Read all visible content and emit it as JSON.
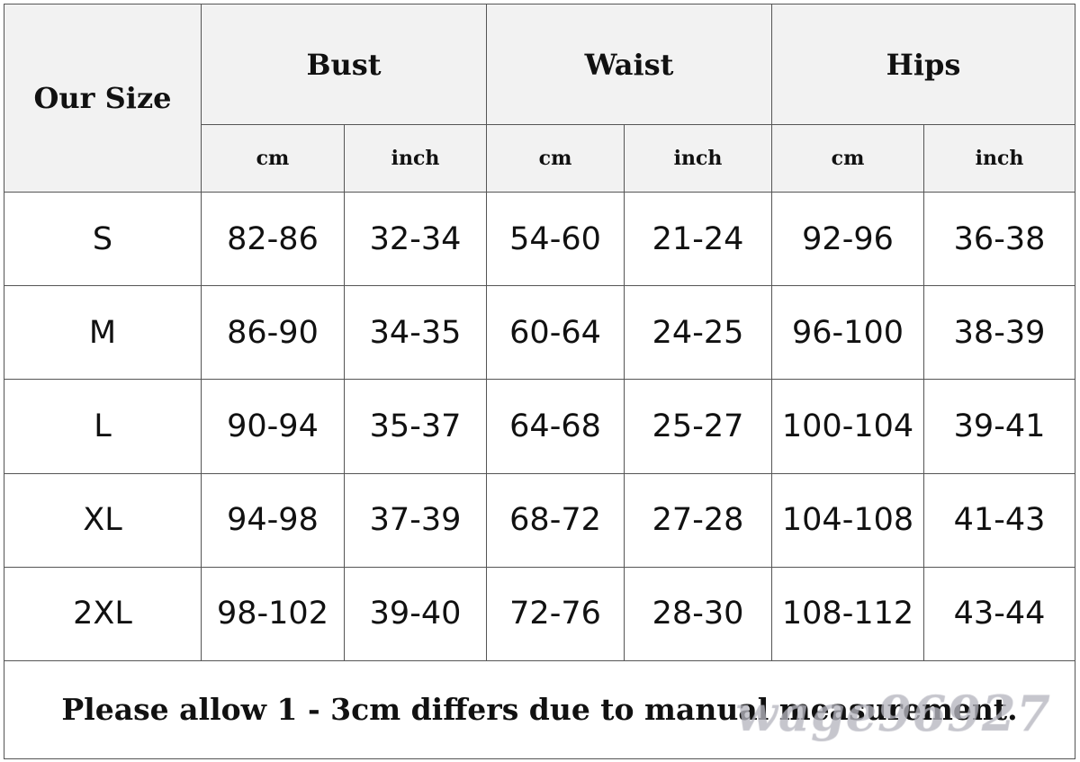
{
  "table": {
    "our_size": "Our Size",
    "groups": [
      "Bust",
      "Waist",
      "Hips"
    ],
    "units": [
      "cm",
      "inch",
      "cm",
      "inch",
      "cm",
      "inch"
    ],
    "rows": [
      {
        "size": "S",
        "values": [
          "82-86",
          "32-34",
          "54-60",
          "21-24",
          "92-96",
          "36-38"
        ]
      },
      {
        "size": "M",
        "values": [
          "86-90",
          "34-35",
          "60-64",
          "24-25",
          "96-100",
          "38-39"
        ]
      },
      {
        "size": "L",
        "values": [
          "90-94",
          "35-37",
          "64-68",
          "25-27",
          "100-104",
          "39-41"
        ]
      },
      {
        "size": "XL",
        "values": [
          "94-98",
          "37-39",
          "68-72",
          "27-28",
          "104-108",
          "41-43"
        ]
      },
      {
        "size": "2XL",
        "values": [
          "98-102",
          "39-40",
          "72-76",
          "28-30",
          "108-112",
          "43-44"
        ]
      }
    ],
    "note": "Please allow 1 - 3cm differs due to manual measurement.",
    "watermark": "wage96927"
  }
}
